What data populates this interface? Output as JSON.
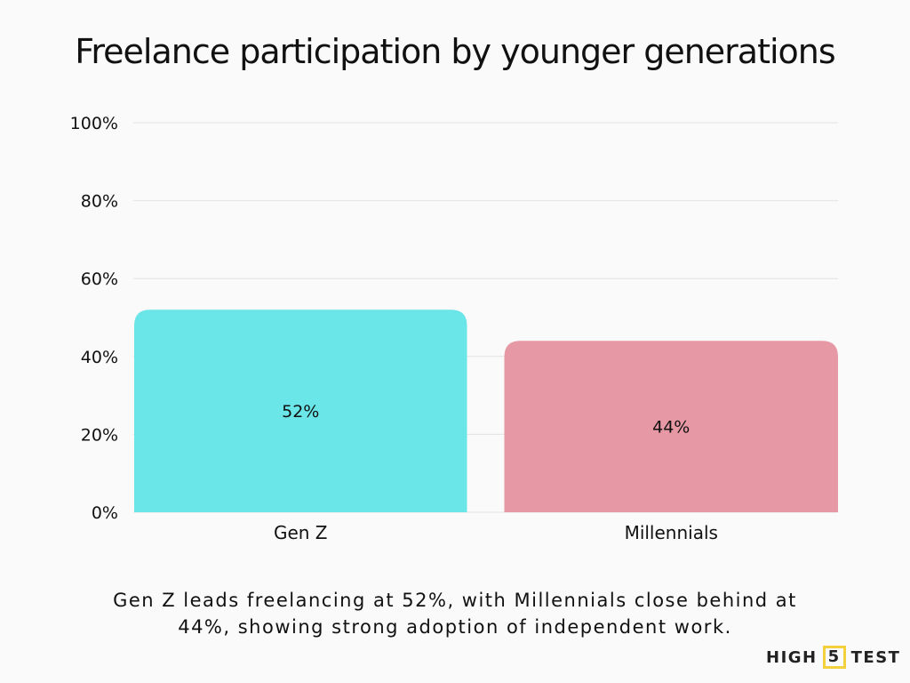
{
  "title": "Freelance participation by younger generations",
  "caption_line1": "Gen Z leads freelancing at 52%, with Millennials close behind at",
  "caption_line2": "44%, showing strong adoption of independent work.",
  "logo": {
    "left": "HIGH",
    "mid": "5",
    "right": "TEST"
  },
  "chart_data": {
    "type": "bar",
    "categories": [
      "Gen Z",
      "Millennials"
    ],
    "values": [
      52,
      44
    ],
    "data_labels": [
      "52%",
      "44%"
    ],
    "colors": [
      "#6ae5e8",
      "#e698a4"
    ],
    "ylim": [
      0,
      100
    ],
    "yticks": [
      0,
      20,
      40,
      60,
      80,
      100
    ],
    "ytick_labels": [
      "0%",
      "20%",
      "40%",
      "60%",
      "80%",
      "100%"
    ],
    "grid": true,
    "xlabel": "",
    "ylabel": ""
  }
}
